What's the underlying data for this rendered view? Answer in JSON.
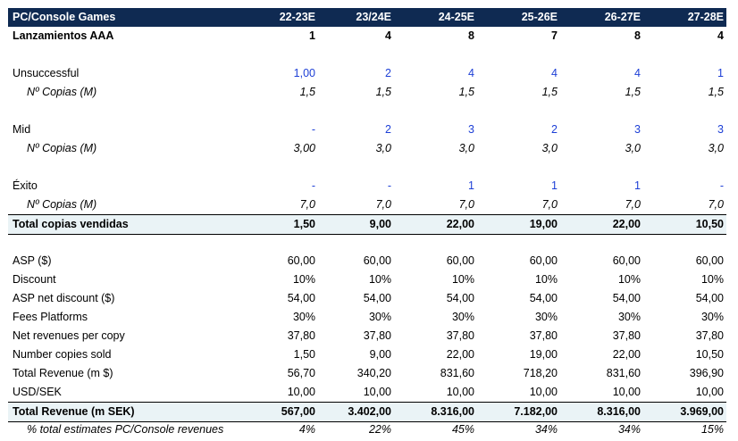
{
  "header": {
    "title": "PC/Console Games",
    "columns": [
      "22-23E",
      "23/24E",
      "24-25E",
      "25-26E",
      "26-27E",
      "27-28E"
    ]
  },
  "rows": [
    {
      "label": "Lanzamientos AAA",
      "values": [
        "1",
        "4",
        "8",
        "7",
        "8",
        "4"
      ]
    },
    {
      "label": "Unsuccessful",
      "values": [
        "1,00",
        "2",
        "4",
        "4",
        "4",
        "1"
      ]
    },
    {
      "label": "Nº Copias (M)",
      "values": [
        "1,5",
        "1,5",
        "1,5",
        "1,5",
        "1,5",
        "1,5"
      ]
    },
    {
      "label": "Mid",
      "values": [
        "-",
        "2",
        "3",
        "2",
        "3",
        "3"
      ]
    },
    {
      "label": "Nº Copias (M)",
      "values": [
        "3,00",
        "3,0",
        "3,0",
        "3,0",
        "3,0",
        "3,0"
      ]
    },
    {
      "label": "Éxito",
      "values": [
        "-",
        "-",
        "1",
        "1",
        "1",
        "-"
      ]
    },
    {
      "label": "Nº Copias (M)",
      "values": [
        "7,0",
        "7,0",
        "7,0",
        "7,0",
        "7,0",
        "7,0"
      ]
    },
    {
      "label": "Total copias vendidas",
      "values": [
        "1,50",
        "9,00",
        "22,00",
        "19,00",
        "22,00",
        "10,50"
      ]
    },
    {
      "label": "ASP ($)",
      "values": [
        "60,00",
        "60,00",
        "60,00",
        "60,00",
        "60,00",
        "60,00"
      ]
    },
    {
      "label": "Discount",
      "values": [
        "10%",
        "10%",
        "10%",
        "10%",
        "10%",
        "10%"
      ]
    },
    {
      "label": "ASP net discount ($)",
      "values": [
        "54,00",
        "54,00",
        "54,00",
        "54,00",
        "54,00",
        "54,00"
      ]
    },
    {
      "label": "Fees Platforms",
      "values": [
        "30%",
        "30%",
        "30%",
        "30%",
        "30%",
        "30%"
      ]
    },
    {
      "label": "Net revenues per copy",
      "values": [
        "37,80",
        "37,80",
        "37,80",
        "37,80",
        "37,80",
        "37,80"
      ]
    },
    {
      "label": "Number copies sold",
      "values": [
        "1,50",
        "9,00",
        "22,00",
        "19,00",
        "22,00",
        "10,50"
      ]
    },
    {
      "label": "Total Revenue (m $)",
      "values": [
        "56,70",
        "340,20",
        "831,60",
        "718,20",
        "831,60",
        "396,90"
      ]
    },
    {
      "label": "USD/SEK",
      "values": [
        "10,00",
        "10,00",
        "10,00",
        "10,00",
        "10,00",
        "10,00"
      ]
    },
    {
      "label": "Total Revenue (m SEK)",
      "values": [
        "567,00",
        "3.402,00",
        "8.316,00",
        "7.182,00",
        "8.316,00",
        "3.969,00"
      ]
    },
    {
      "label": "% total estimates PC/Console revenues",
      "values": [
        "4%",
        "22%",
        "45%",
        "34%",
        "34%",
        "15%"
      ]
    }
  ],
  "colors": {
    "header_bg": "#0f2a52",
    "input_blue": "#1d3fd6",
    "total_bg": "#eaf3f6"
  }
}
